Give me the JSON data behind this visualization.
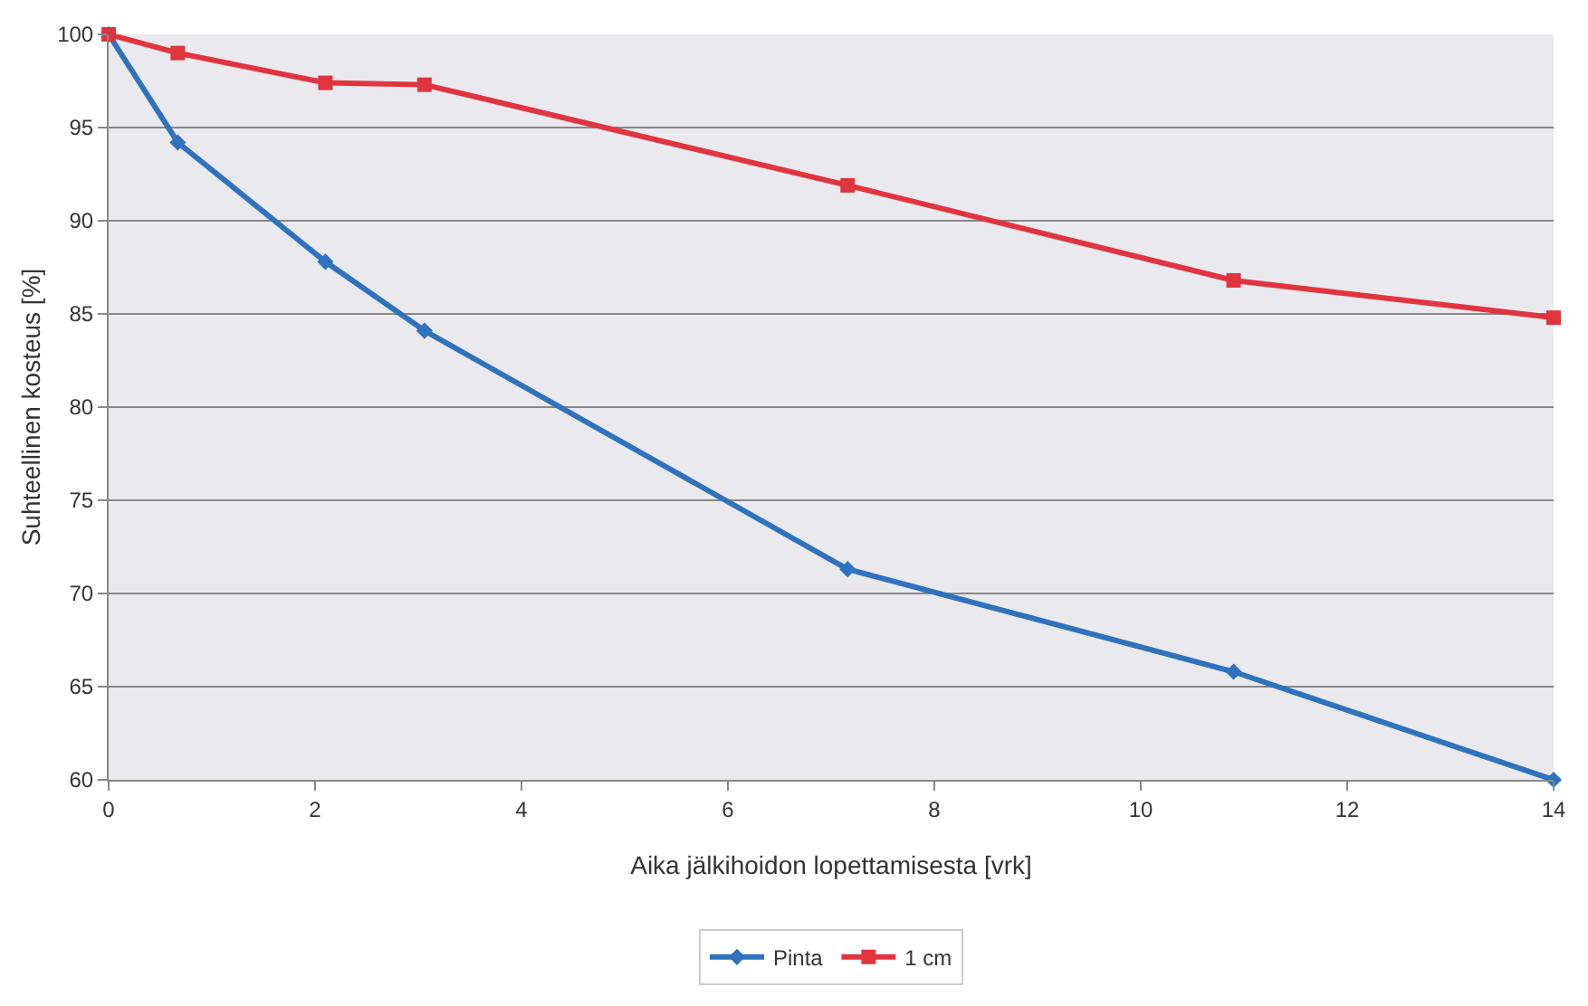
{
  "chart_data": {
    "type": "line",
    "xlabel": "Aika jälkihoidon lopettamisesta [vrk]",
    "ylabel": "Suhteellinen kosteus [%]",
    "x": [
      0,
      0.67,
      2.1,
      3.06,
      7.16,
      10.9,
      14
    ],
    "series": [
      {
        "name": "Pinta",
        "color": "#2f72bd",
        "marker": "diamond",
        "values": [
          100,
          94.2,
          87.8,
          84.1,
          71.3,
          65.8,
          60
        ]
      },
      {
        "name": "1 cm",
        "color": "#e0343f",
        "marker": "square",
        "values": [
          100,
          99.0,
          97.4,
          97.3,
          91.9,
          86.8,
          84.8
        ]
      }
    ],
    "xlim": [
      0,
      14
    ],
    "xticks": [
      0,
      2,
      4,
      6,
      8,
      10,
      12,
      14
    ],
    "ylim": [
      60,
      100
    ],
    "yticks": [
      60,
      65,
      70,
      75,
      80,
      85,
      90,
      95,
      100
    ],
    "grid": "y",
    "legend": "bottom",
    "line_style": "solid"
  }
}
